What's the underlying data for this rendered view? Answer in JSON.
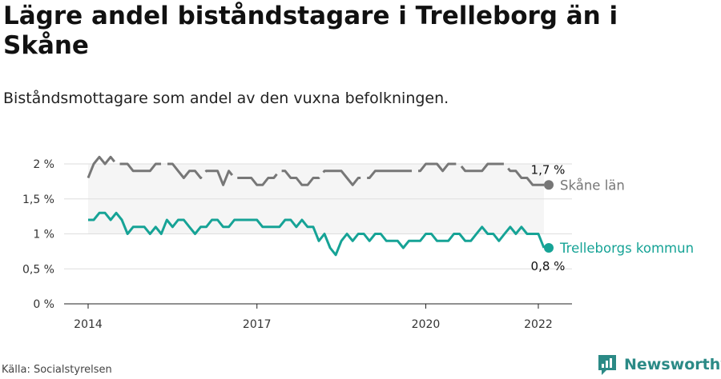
{
  "title": "Lägre andel biståndstagare i Trelleborg än i Skåne",
  "subtitle": "Biståndsmottagare som andel av den vuxna befolkningen.",
  "source": "Källa: Socialstyrelsen",
  "brand": {
    "name": "Newsworthy",
    "icon": "newsworthy-logo-icon",
    "color": "#2b8a86"
  },
  "chart_data": {
    "type": "line",
    "title": "Lägre andel biståndstagare i Trelleborg än i Skåne",
    "subtitle": "Biståndsmottagare som andel av den vuxna befolkningen.",
    "x_ticks": [
      {
        "value": 2014.0,
        "label": "2014"
      },
      {
        "value": 2017.0,
        "label": "2017"
      },
      {
        "value": 2020.0,
        "label": "2020"
      },
      {
        "value": 2022.0,
        "label": "2022"
      }
    ],
    "y_ticks": [
      {
        "value": 0,
        "label": "0 %"
      },
      {
        "value": 0.5,
        "label": "0,5 %"
      },
      {
        "value": 1,
        "label": "1 %"
      },
      {
        "value": 1.5,
        "label": "1,5 %"
      },
      {
        "value": 2,
        "label": "2 %"
      }
    ],
    "xlim": [
      2013.6,
      2022.5
    ],
    "ylim": [
      0,
      2.2
    ],
    "grid": true,
    "series": [
      {
        "name": "Skåne län",
        "color": "#777777",
        "line_style": "dashed",
        "end_label": "1,7 %",
        "end_value": 1.7,
        "x": [
          2014.0,
          2014.1,
          2014.2,
          2014.3,
          2014.4,
          2014.5,
          2014.6,
          2014.7,
          2014.8,
          2014.9,
          2015.0,
          2015.1,
          2015.2,
          2015.3,
          2015.4,
          2015.5,
          2015.6,
          2015.7,
          2015.8,
          2015.9,
          2016.0,
          2016.1,
          2016.2,
          2016.3,
          2016.4,
          2016.5,
          2016.6,
          2016.7,
          2016.8,
          2016.9,
          2017.0,
          2017.1,
          2017.2,
          2017.3,
          2017.4,
          2017.5,
          2017.6,
          2017.7,
          2017.8,
          2017.9,
          2018.0,
          2018.1,
          2018.2,
          2018.3,
          2018.4,
          2018.5,
          2018.6,
          2018.7,
          2018.8,
          2018.9,
          2019.0,
          2019.1,
          2019.2,
          2019.3,
          2019.4,
          2019.5,
          2019.6,
          2019.7,
          2019.8,
          2019.9,
          2020.0,
          2020.1,
          2020.2,
          2020.3,
          2020.4,
          2020.5,
          2020.6,
          2020.7,
          2020.8,
          2020.9,
          2021.0,
          2021.1,
          2021.2,
          2021.3,
          2021.4,
          2021.5,
          2021.6,
          2021.7,
          2021.8,
          2021.9,
          2022.0,
          2022.1
        ],
        "y": [
          1.8,
          2.0,
          2.1,
          2.0,
          2.1,
          2.0,
          2.0,
          2.0,
          1.9,
          1.9,
          1.9,
          1.9,
          2.0,
          2.0,
          2.0,
          2.0,
          1.9,
          1.8,
          1.9,
          1.9,
          1.8,
          1.9,
          1.9,
          1.9,
          1.7,
          1.9,
          1.8,
          1.8,
          1.8,
          1.8,
          1.7,
          1.7,
          1.8,
          1.8,
          1.9,
          1.9,
          1.8,
          1.8,
          1.7,
          1.7,
          1.8,
          1.8,
          1.9,
          1.9,
          1.9,
          1.9,
          1.8,
          1.7,
          1.8,
          1.8,
          1.8,
          1.9,
          1.9,
          1.9,
          1.9,
          1.9,
          1.9,
          1.9,
          1.9,
          1.9,
          2.0,
          2.0,
          2.0,
          1.9,
          2.0,
          2.0,
          2.0,
          1.9,
          1.9,
          1.9,
          1.9,
          2.0,
          2.0,
          2.0,
          2.0,
          1.9,
          1.9,
          1.8,
          1.8,
          1.7,
          1.7,
          1.7
        ]
      },
      {
        "name": "Trelleborgs kommun",
        "color": "#16a396",
        "line_style": "solid",
        "end_label": "0,8 %",
        "end_value": 0.8,
        "x": [
          2014.0,
          2014.1,
          2014.2,
          2014.3,
          2014.4,
          2014.5,
          2014.6,
          2014.7,
          2014.8,
          2014.9,
          2015.0,
          2015.1,
          2015.2,
          2015.3,
          2015.4,
          2015.5,
          2015.6,
          2015.7,
          2015.8,
          2015.9,
          2016.0,
          2016.1,
          2016.2,
          2016.3,
          2016.4,
          2016.5,
          2016.6,
          2016.7,
          2016.8,
          2016.9,
          2017.0,
          2017.1,
          2017.2,
          2017.3,
          2017.4,
          2017.5,
          2017.6,
          2017.7,
          2017.8,
          2017.9,
          2018.0,
          2018.1,
          2018.2,
          2018.3,
          2018.4,
          2018.5,
          2018.6,
          2018.7,
          2018.8,
          2018.9,
          2019.0,
          2019.1,
          2019.2,
          2019.3,
          2019.4,
          2019.5,
          2019.6,
          2019.7,
          2019.8,
          2019.9,
          2020.0,
          2020.1,
          2020.2,
          2020.3,
          2020.4,
          2020.5,
          2020.6,
          2020.7,
          2020.8,
          2020.9,
          2021.0,
          2021.1,
          2021.2,
          2021.3,
          2021.4,
          2021.5,
          2021.6,
          2021.7,
          2021.8,
          2021.9,
          2022.0,
          2022.1
        ],
        "y": [
          1.2,
          1.2,
          1.3,
          1.3,
          1.2,
          1.3,
          1.2,
          1.0,
          1.1,
          1.1,
          1.1,
          1.0,
          1.1,
          1.0,
          1.2,
          1.1,
          1.2,
          1.2,
          1.1,
          1.0,
          1.1,
          1.1,
          1.2,
          1.2,
          1.1,
          1.1,
          1.2,
          1.2,
          1.2,
          1.2,
          1.2,
          1.1,
          1.1,
          1.1,
          1.1,
          1.2,
          1.2,
          1.1,
          1.2,
          1.1,
          1.1,
          0.9,
          1.0,
          0.8,
          0.7,
          0.9,
          1.0,
          0.9,
          1.0,
          1.0,
          0.9,
          1.0,
          1.0,
          0.9,
          0.9,
          0.9,
          0.8,
          0.9,
          0.9,
          0.9,
          1.0,
          1.0,
          0.9,
          0.9,
          0.9,
          1.0,
          1.0,
          0.9,
          0.9,
          1.0,
          1.1,
          1.0,
          1.0,
          0.9,
          1.0,
          1.1,
          1.0,
          1.1,
          1.0,
          1.0,
          1.0,
          0.8
        ]
      }
    ]
  }
}
